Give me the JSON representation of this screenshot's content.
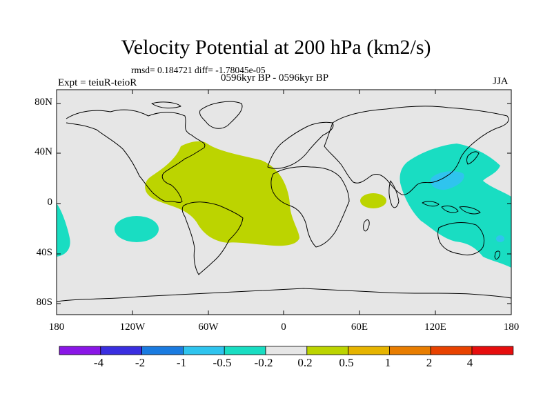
{
  "title": "Velocity Potential at 200 hPa (km2/s)",
  "stats": "rmsd= 0.184721 diff= -1.78045e-05",
  "experiment": "Expt = teiuR-teioR",
  "period": "0596kyr BP - 0596kyr BP",
  "season": "JJA",
  "colors": {
    "background": "#e6e6e6",
    "positive_low": "#bcd400",
    "negative_low": "#19ddc2",
    "negative_mid": "#2fc4ee",
    "coast": "#000000"
  },
  "axes": {
    "lat_labels": [
      "80N",
      "40N",
      "0",
      "40S",
      "80S"
    ],
    "lat_values": [
      80,
      40,
      0,
      -40,
      -80
    ],
    "lon_labels": [
      "180",
      "120W",
      "60W",
      "0",
      "60E",
      "120E",
      "180"
    ],
    "lon_values": [
      -180,
      -120,
      -60,
      0,
      60,
      120,
      180
    ]
  },
  "colorbar": {
    "colors": [
      "#8a16e6",
      "#3a2ee0",
      "#1a7be0",
      "#2fc4ee",
      "#19ddc2",
      "#e6e6e6",
      "#bcd400",
      "#e6b400",
      "#e87d00",
      "#e84200",
      "#e60e0e"
    ],
    "labels": [
      "-4",
      "-2",
      "-1",
      "-0.5",
      "-0.2",
      "0.2",
      "0.5",
      "1",
      "2",
      "4"
    ]
  }
}
